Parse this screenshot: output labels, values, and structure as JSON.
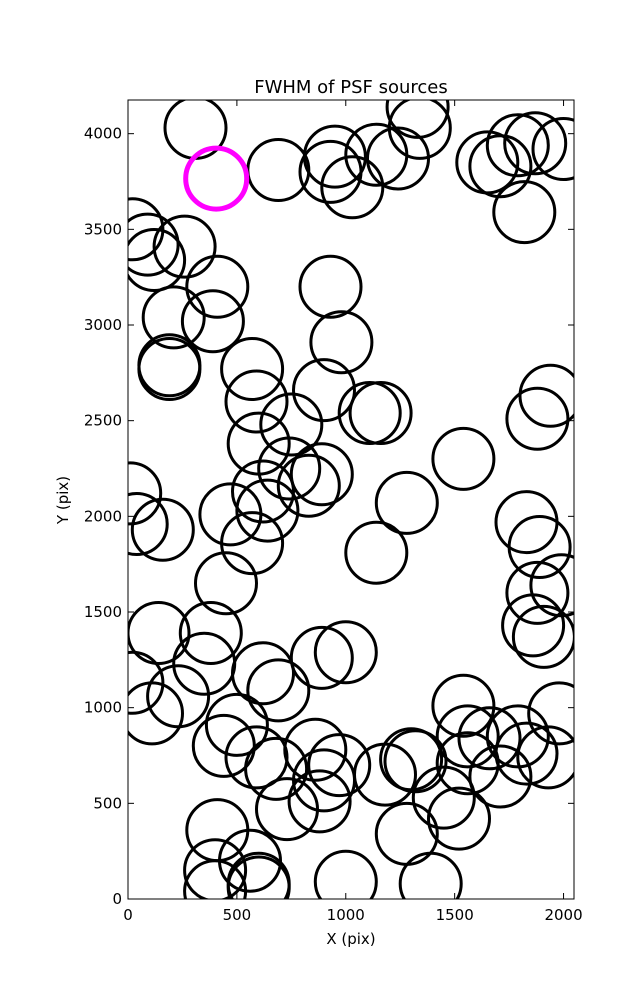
{
  "chart_data": {
    "type": "scatter",
    "title": "FWHM of PSF sources",
    "xlabel": "X (pix)",
    "ylabel": "Y (pix)",
    "xlim": [
      0,
      2048
    ],
    "ylim": [
      0,
      4176
    ],
    "xticks": [
      0,
      500,
      1000,
      1500,
      2000
    ],
    "yticks": [
      0,
      500,
      1000,
      1500,
      2000,
      2500,
      3000,
      3500,
      4000
    ],
    "grid": false,
    "marker_radius_pix": 140,
    "colors": {
      "series": "#000000",
      "highlight": "#ff00ff"
    },
    "highlight": {
      "x": 405,
      "y": 3765
    },
    "points": [
      [
        310,
        4030
      ],
      [
        690,
        3810
      ],
      [
        950,
        3880
      ],
      [
        930,
        3800
      ],
      [
        1030,
        3720
      ],
      [
        1140,
        3890
      ],
      [
        1240,
        3870
      ],
      [
        1330,
        4140
      ],
      [
        1340,
        4030
      ],
      [
        1650,
        3850
      ],
      [
        1710,
        3830
      ],
      [
        1790,
        3940
      ],
      [
        1870,
        3950
      ],
      [
        2000,
        3920
      ],
      [
        1820,
        3590
      ],
      [
        20,
        3500
      ],
      [
        90,
        3420
      ],
      [
        120,
        3340
      ],
      [
        260,
        3410
      ],
      [
        410,
        3200
      ],
      [
        930,
        3200
      ],
      [
        210,
        3040
      ],
      [
        390,
        3020
      ],
      [
        980,
        2910
      ],
      [
        190,
        2790
      ],
      [
        190,
        2770
      ],
      [
        570,
        2770
      ],
      [
        590,
        2600
      ],
      [
        900,
        2660
      ],
      [
        1110,
        2540
      ],
      [
        1160,
        2540
      ],
      [
        1880,
        2510
      ],
      [
        1940,
        2630
      ],
      [
        600,
        2380
      ],
      [
        750,
        2480
      ],
      [
        740,
        2250
      ],
      [
        890,
        2220
      ],
      [
        830,
        2160
      ],
      [
        620,
        2130
      ],
      [
        640,
        2030
      ],
      [
        1540,
        2300
      ],
      [
        10,
        2120
      ],
      [
        40,
        1960
      ],
      [
        160,
        1930
      ],
      [
        470,
        2010
      ],
      [
        570,
        1860
      ],
      [
        1280,
        2070
      ],
      [
        1140,
        1810
      ],
      [
        1830,
        1970
      ],
      [
        1890,
        1840
      ],
      [
        450,
        1650
      ],
      [
        1990,
        1640
      ],
      [
        1880,
        1600
      ],
      [
        1860,
        1430
      ],
      [
        1910,
        1370
      ],
      [
        140,
        1390
      ],
      [
        380,
        1390
      ],
      [
        350,
        1230
      ],
      [
        620,
        1180
      ],
      [
        690,
        1090
      ],
      [
        890,
        1260
      ],
      [
        1000,
        1290
      ],
      [
        20,
        1130
      ],
      [
        110,
        970
      ],
      [
        230,
        1060
      ],
      [
        500,
        910
      ],
      [
        440,
        800
      ],
      [
        590,
        740
      ],
      [
        680,
        680
      ],
      [
        860,
        780
      ],
      [
        900,
        620
      ],
      [
        970,
        700
      ],
      [
        880,
        510
      ],
      [
        730,
        470
      ],
      [
        1180,
        650
      ],
      [
        1300,
        730
      ],
      [
        1320,
        720
      ],
      [
        1540,
        1010
      ],
      [
        1560,
        850
      ],
      [
        1560,
        710
      ],
      [
        1660,
        840
      ],
      [
        1710,
        640
      ],
      [
        1790,
        850
      ],
      [
        1830,
        760
      ],
      [
        1930,
        740
      ],
      [
        1980,
        970
      ],
      [
        1450,
        530
      ],
      [
        1520,
        420
      ],
      [
        1280,
        340
      ],
      [
        410,
        360
      ],
      [
        400,
        150
      ],
      [
        400,
        40
      ],
      [
        560,
        200
      ],
      [
        600,
        80
      ],
      [
        600,
        60
      ],
      [
        1000,
        90
      ],
      [
        1390,
        80
      ]
    ]
  }
}
